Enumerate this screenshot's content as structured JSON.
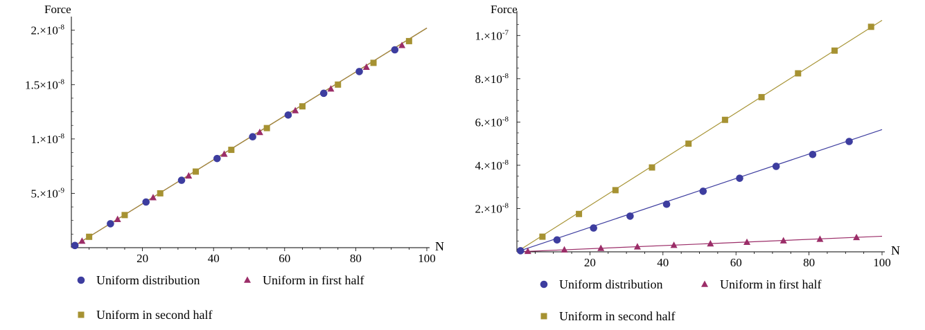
{
  "colors": {
    "uniform_distribution": "#3d3d9f",
    "uniform_first_half": "#9b2d68",
    "uniform_second_half": "#a69232",
    "axis": "#000000"
  },
  "chart_data": [
    {
      "type": "scatter",
      "xlabel": "N",
      "ylabel": "Force",
      "xlim": [
        0,
        100
      ],
      "ylim": [
        0,
        2.1e-08
      ],
      "xticks": [
        20,
        40,
        60,
        80,
        100
      ],
      "xtick_labels": [
        "20",
        "40",
        "60",
        "80",
        "100"
      ],
      "yticks": [
        5e-09,
        1e-08,
        1.5e-08,
        2e-08
      ],
      "ytick_labels": [
        {
          "mantissa": "5.",
          "exp": "-9"
        },
        {
          "mantissa": "1.",
          "exp": "-8"
        },
        {
          "mantissa": "1.5",
          "exp": "-8"
        },
        {
          "mantissa": "2.",
          "exp": "-8"
        }
      ],
      "legend": {
        "placement": "bottom"
      },
      "series": [
        {
          "name": "Uniform distribution",
          "color_key": "uniform_distribution",
          "marker": "circle",
          "fit": {
            "x": [
              0,
              100
            ],
            "y": [
              0,
              2.02e-08
            ]
          },
          "x": [
            1,
            11,
            21,
            31,
            41,
            51,
            61,
            71,
            81,
            91
          ],
          "y": [
            2e-10,
            2.2e-09,
            4.2e-09,
            6.2e-09,
            8.2e-09,
            1.02e-08,
            1.22e-08,
            1.42e-08,
            1.62e-08,
            1.82e-08
          ]
        },
        {
          "name": "Uniform in first half",
          "color_key": "uniform_first_half",
          "marker": "triangle",
          "fit": {
            "x": [
              0,
              100
            ],
            "y": [
              0,
              2.02e-08
            ]
          },
          "x": [
            3,
            13,
            23,
            33,
            43,
            53,
            63,
            73,
            83,
            93
          ],
          "y": [
            6e-10,
            2.6e-09,
            4.6e-09,
            6.6e-09,
            8.6e-09,
            1.06e-08,
            1.26e-08,
            1.46e-08,
            1.66e-08,
            1.86e-08
          ]
        },
        {
          "name": "Uniform in second half",
          "color_key": "uniform_second_half",
          "marker": "square",
          "fit": {
            "x": [
              0,
              100
            ],
            "y": [
              0,
              2.02e-08
            ]
          },
          "x": [
            5,
            15,
            25,
            35,
            45,
            55,
            65,
            75,
            85,
            95
          ],
          "y": [
            1e-09,
            3e-09,
            5e-09,
            7e-09,
            9e-09,
            1.1e-08,
            1.3e-08,
            1.5e-08,
            1.7e-08,
            1.9e-08
          ]
        }
      ]
    },
    {
      "type": "scatter",
      "xlabel": "N",
      "ylabel": "Force",
      "xlim": [
        0,
        100
      ],
      "ylim": [
        0,
        1.1e-07
      ],
      "xticks": [
        20,
        40,
        60,
        80,
        100
      ],
      "xtick_labels": [
        "20",
        "40",
        "60",
        "80",
        "100"
      ],
      "yticks": [
        2e-08,
        4e-08,
        6e-08,
        8e-08,
        1e-07
      ],
      "ytick_labels": [
        {
          "mantissa": "2.",
          "exp": "-8"
        },
        {
          "mantissa": "4.",
          "exp": "-8"
        },
        {
          "mantissa": "6.",
          "exp": "-8"
        },
        {
          "mantissa": "8.",
          "exp": "-8"
        },
        {
          "mantissa": "1.",
          "exp": "-7"
        }
      ],
      "legend": {
        "placement": "bottom"
      },
      "series": [
        {
          "name": "Uniform distribution",
          "color_key": "uniform_distribution",
          "marker": "circle",
          "fit": {
            "x": [
              0,
              100
            ],
            "y": [
              0,
              5.65e-08
            ]
          },
          "x": [
            1,
            11,
            21,
            31,
            41,
            51,
            61,
            71,
            81,
            91
          ],
          "y": [
            5e-10,
            5.5e-09,
            1.1e-08,
            1.65e-08,
            2.2e-08,
            2.8e-08,
            3.4e-08,
            3.95e-08,
            4.5e-08,
            5.1e-08
          ]
        },
        {
          "name": "Uniform in first half",
          "color_key": "uniform_first_half",
          "marker": "triangle",
          "fit": {
            "x": [
              0,
              100
            ],
            "y": [
              0,
              7.2e-09
            ]
          },
          "x": [
            3,
            13,
            23,
            33,
            43,
            53,
            63,
            73,
            83,
            93
          ],
          "y": [
            2e-10,
            9e-10,
            1.6e-09,
            2.3e-09,
            3e-09,
            3.7e-09,
            4.4e-09,
            5.1e-09,
            5.8e-09,
            6.6e-09
          ]
        },
        {
          "name": "Uniform in second half",
          "color_key": "uniform_second_half",
          "marker": "square",
          "fit": {
            "x": [
              0,
              100
            ],
            "y": [
              0,
              1.07e-07
            ]
          },
          "x": [
            7,
            17,
            27,
            37,
            47,
            57,
            67,
            77,
            87,
            97
          ],
          "y": [
            7e-09,
            1.75e-08,
            2.85e-08,
            3.9e-08,
            5e-08,
            6.1e-08,
            7.15e-08,
            8.25e-08,
            9.3e-08,
            1.04e-07
          ]
        }
      ]
    }
  ]
}
